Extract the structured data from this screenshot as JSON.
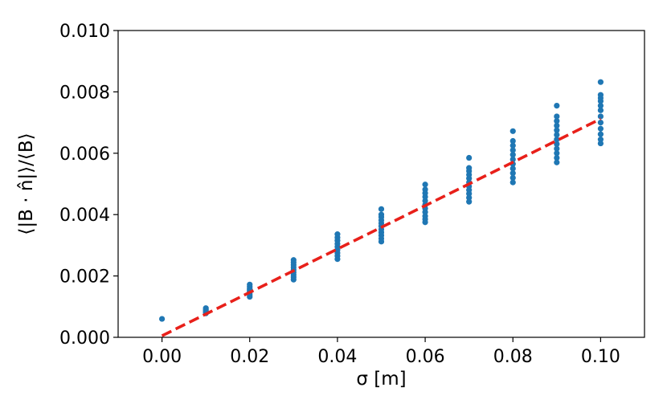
{
  "chart_data": {
    "type": "scatter",
    "title": "",
    "xlabel": "σ [m]",
    "ylabel": "⟨|B · n̂|⟩/⟨B⟩",
    "xlim": [
      -0.01,
      0.11
    ],
    "ylim": [
      0.0,
      0.01
    ],
    "xticks": [
      "0.00",
      "0.02",
      "0.04",
      "0.06",
      "0.08",
      "0.10"
    ],
    "yticks": [
      "0.000",
      "0.002",
      "0.004",
      "0.006",
      "0.008",
      "0.010"
    ],
    "grid": false,
    "colors": {
      "points": "#1f77b4",
      "fit": "#e8201a",
      "axes": "#000000"
    },
    "series": [
      {
        "type": "scatter",
        "points": [
          [
            0.0,
            0.0006
          ],
          [
            0.01,
            0.00078
          ],
          [
            0.01,
            0.00082
          ],
          [
            0.01,
            0.00086
          ],
          [
            0.01,
            0.0009
          ],
          [
            0.01,
            0.00095
          ],
          [
            0.02,
            0.00132
          ],
          [
            0.02,
            0.00138
          ],
          [
            0.02,
            0.00145
          ],
          [
            0.02,
            0.0015
          ],
          [
            0.02,
            0.00155
          ],
          [
            0.02,
            0.0016
          ],
          [
            0.02,
            0.00166
          ],
          [
            0.02,
            0.00172
          ],
          [
            0.03,
            0.00188
          ],
          [
            0.03,
            0.00196
          ],
          [
            0.03,
            0.00204
          ],
          [
            0.03,
            0.00212
          ],
          [
            0.03,
            0.0022
          ],
          [
            0.03,
            0.00228
          ],
          [
            0.03,
            0.00236
          ],
          [
            0.03,
            0.00244
          ],
          [
            0.03,
            0.00252
          ],
          [
            0.04,
            0.00255
          ],
          [
            0.04,
            0.00265
          ],
          [
            0.04,
            0.00275
          ],
          [
            0.04,
            0.00285
          ],
          [
            0.04,
            0.00295
          ],
          [
            0.04,
            0.00305
          ],
          [
            0.04,
            0.00315
          ],
          [
            0.04,
            0.00325
          ],
          [
            0.04,
            0.00336
          ],
          [
            0.05,
            0.00312
          ],
          [
            0.05,
            0.00322
          ],
          [
            0.05,
            0.00332
          ],
          [
            0.05,
            0.00342
          ],
          [
            0.05,
            0.00352
          ],
          [
            0.05,
            0.00362
          ],
          [
            0.05,
            0.00372
          ],
          [
            0.05,
            0.00382
          ],
          [
            0.05,
            0.00392
          ],
          [
            0.05,
            0.004
          ],
          [
            0.05,
            0.00418
          ],
          [
            0.06,
            0.00375
          ],
          [
            0.06,
            0.00385
          ],
          [
            0.06,
            0.00395
          ],
          [
            0.06,
            0.00408
          ],
          [
            0.06,
            0.0042
          ],
          [
            0.06,
            0.00432
          ],
          [
            0.06,
            0.00445
          ],
          [
            0.06,
            0.00458
          ],
          [
            0.06,
            0.0047
          ],
          [
            0.06,
            0.00482
          ],
          [
            0.06,
            0.00498
          ],
          [
            0.07,
            0.00442
          ],
          [
            0.07,
            0.00455
          ],
          [
            0.07,
            0.00468
          ],
          [
            0.07,
            0.0048
          ],
          [
            0.07,
            0.00492
          ],
          [
            0.07,
            0.00505
          ],
          [
            0.07,
            0.00518
          ],
          [
            0.07,
            0.0053
          ],
          [
            0.07,
            0.00542
          ],
          [
            0.07,
            0.00552
          ],
          [
            0.07,
            0.00585
          ],
          [
            0.08,
            0.00505
          ],
          [
            0.08,
            0.0052
          ],
          [
            0.08,
            0.00535
          ],
          [
            0.08,
            0.0055
          ],
          [
            0.08,
            0.00565
          ],
          [
            0.08,
            0.0058
          ],
          [
            0.08,
            0.00595
          ],
          [
            0.08,
            0.0061
          ],
          [
            0.08,
            0.00625
          ],
          [
            0.08,
            0.0064
          ],
          [
            0.08,
            0.00672
          ],
          [
            0.09,
            0.0057
          ],
          [
            0.09,
            0.00585
          ],
          [
            0.09,
            0.006
          ],
          [
            0.09,
            0.00615
          ],
          [
            0.09,
            0.0063
          ],
          [
            0.09,
            0.00645
          ],
          [
            0.09,
            0.0066
          ],
          [
            0.09,
            0.00675
          ],
          [
            0.09,
            0.0069
          ],
          [
            0.09,
            0.00705
          ],
          [
            0.09,
            0.0072
          ],
          [
            0.09,
            0.00755
          ],
          [
            0.1,
            0.00632
          ],
          [
            0.1,
            0.00645
          ],
          [
            0.1,
            0.00662
          ],
          [
            0.1,
            0.0068
          ],
          [
            0.1,
            0.007
          ],
          [
            0.1,
            0.0072
          ],
          [
            0.1,
            0.0074
          ],
          [
            0.1,
            0.00755
          ],
          [
            0.1,
            0.0077
          ],
          [
            0.1,
            0.0078
          ],
          [
            0.1,
            0.0079
          ],
          [
            0.1,
            0.00832
          ]
        ]
      },
      {
        "type": "line",
        "style": "dashed",
        "points": [
          [
            0.0,
            5e-05
          ],
          [
            0.1,
            0.00712
          ]
        ]
      }
    ]
  }
}
